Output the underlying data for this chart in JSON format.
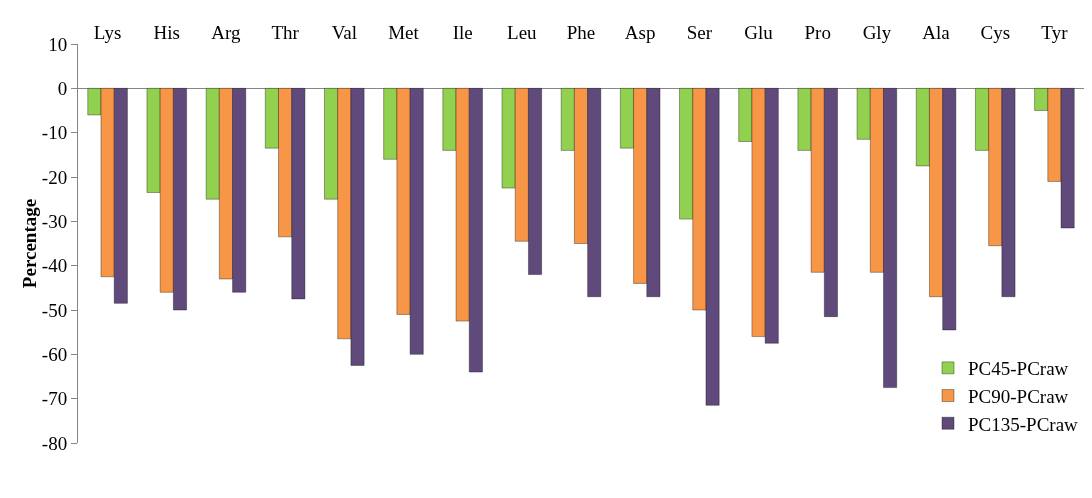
{
  "chart_data": {
    "type": "bar",
    "ylabel": "Percentage",
    "categories": [
      "Lys",
      "His",
      "Arg",
      "Thr",
      "Val",
      "Met",
      "Ile",
      "Leu",
      "Phe",
      "Asp",
      "Ser",
      "Glu",
      "Pro",
      "Gly",
      "Ala",
      "Cys",
      "Tyr"
    ],
    "series": [
      {
        "name": "PC45-PCraw",
        "color": "#92d050",
        "values": [
          -6,
          -23.5,
          -25,
          -13.5,
          -25,
          -16,
          -14,
          -22.5,
          -14,
          -13.5,
          -29.5,
          -12,
          -14,
          -11.5,
          -17.5,
          -14,
          -5
        ]
      },
      {
        "name": "PC90-PCraw",
        "color": "#f79646",
        "values": [
          -42.5,
          -46,
          -43,
          -33.5,
          -56.5,
          -51,
          -52.5,
          -34.5,
          -35,
          -44,
          -50,
          -56,
          -41.5,
          -41.5,
          -47,
          -35.5,
          -21
        ]
      },
      {
        "name": "PC135-PCraw",
        "color": "#604a7b",
        "values": [
          -48.5,
          -50,
          -46,
          -47.5,
          -62.5,
          -60,
          -64,
          -42,
          -47,
          -47,
          -71.5,
          -57.5,
          -51.5,
          -67.5,
          -54.5,
          -47,
          -31.5
        ]
      }
    ],
    "ylim": [
      -80,
      10
    ],
    "yticks": [
      -80,
      -70,
      -60,
      -50,
      -40,
      -30,
      -20,
      -10,
      0,
      10
    ],
    "grid": false,
    "legend": "bottom right"
  }
}
